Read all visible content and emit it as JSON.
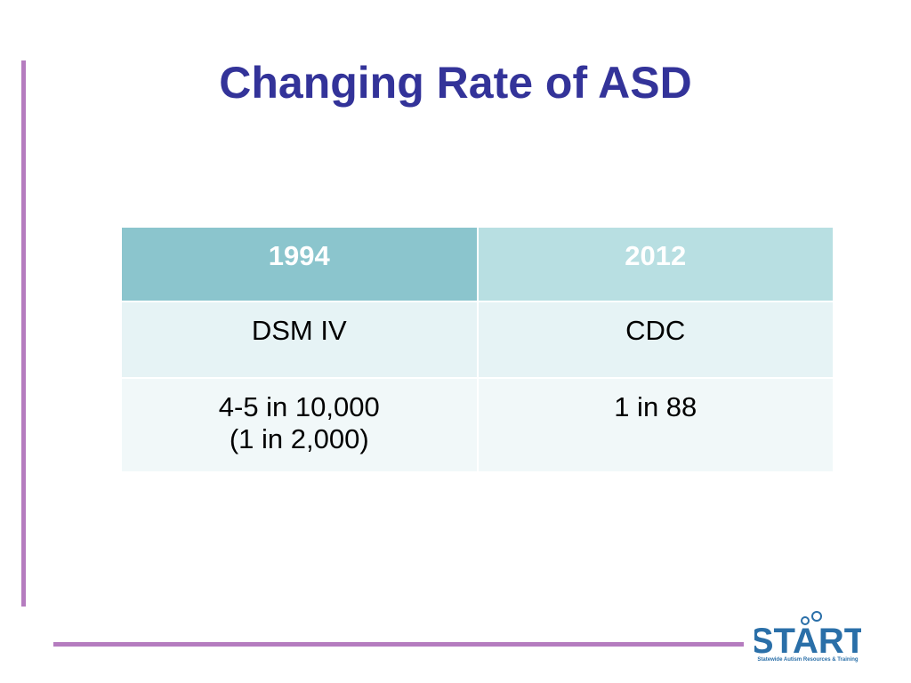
{
  "title": "Changing Rate of ASD",
  "table": {
    "header": [
      "1994",
      "2012"
    ],
    "rows": [
      [
        [
          "DSM IV"
        ],
        [
          "CDC"
        ]
      ],
      [
        [
          "4-5 in 10,000",
          "(1 in 2,000)"
        ],
        [
          "1 in 88"
        ]
      ]
    ]
  },
  "logo": {
    "name": "START",
    "tagline": "Statewide Autism Resources & Training"
  }
}
